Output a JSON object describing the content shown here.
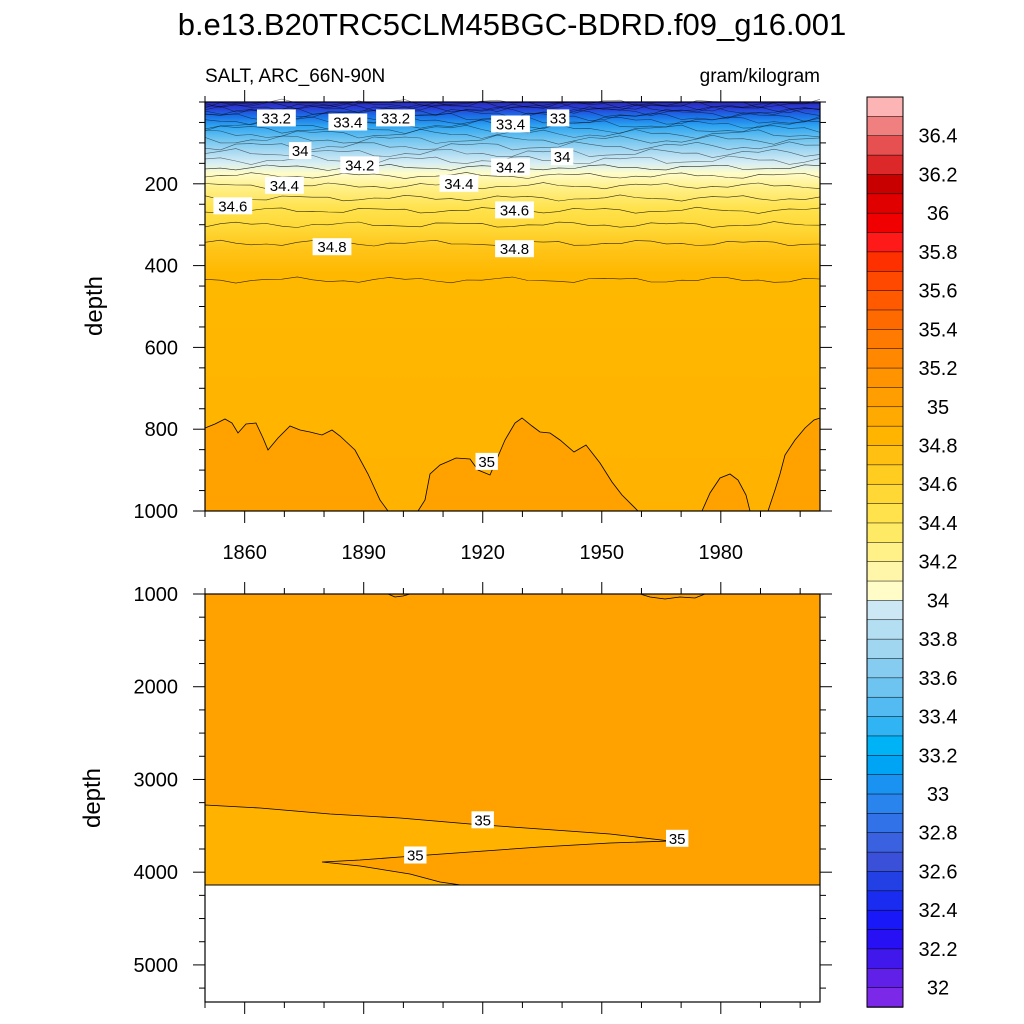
{
  "chart_data": {
    "type": "contour",
    "title": "b.e13.B20TRC5CLM45BGC-BDRD.f09_g16.001",
    "left_string": "SALT, ARC_66N-90N",
    "right_string": "gram/kilogram",
    "xlabel": "",
    "ylabel": "depth",
    "x_range": [
      1850,
      2005
    ],
    "x_tick_labels": [
      "1860",
      "1890",
      "1920",
      "1950",
      "1980"
    ],
    "x_tick_values": [
      1860,
      1890,
      1920,
      1950,
      1980
    ],
    "panels": [
      {
        "name": "upper",
        "y_range": [
          0,
          1000
        ],
        "y_reversed": true,
        "y_tick_labels": [
          "200",
          "400",
          "600",
          "800",
          "1000"
        ],
        "y_tick_values": [
          200,
          400,
          600,
          800,
          1000
        ],
        "contour_labels": [
          {
            "text": "33.2",
            "x": 1868,
            "y": 40
          },
          {
            "text": "33.4",
            "x": 1886,
            "y": 50
          },
          {
            "text": "33.2",
            "x": 1898,
            "y": 40
          },
          {
            "text": "33.4",
            "x": 1927,
            "y": 55
          },
          {
            "text": "33",
            "x": 1939,
            "y": 40
          },
          {
            "text": "34",
            "x": 1874,
            "y": 120
          },
          {
            "text": "34.2",
            "x": 1889,
            "y": 155
          },
          {
            "text": "34",
            "x": 1940,
            "y": 135
          },
          {
            "text": "34.2",
            "x": 1927,
            "y": 160
          },
          {
            "text": "34.4",
            "x": 1870,
            "y": 205
          },
          {
            "text": "34.4",
            "x": 1914,
            "y": 200
          },
          {
            "text": "34.6",
            "x": 1857,
            "y": 255
          },
          {
            "text": "34.6",
            "x": 1928,
            "y": 265
          },
          {
            "text": "34.8",
            "x": 1882,
            "y": 355
          },
          {
            "text": "34.8",
            "x": 1928,
            "y": 360
          },
          {
            "text": "35",
            "x": 1921,
            "y": 880
          }
        ]
      },
      {
        "name": "lower",
        "y_range": [
          1000,
          5400
        ],
        "y_reversed": true,
        "y_tick_labels": [
          "1000",
          "2000",
          "3000",
          "4000",
          "5000"
        ],
        "y_tick_values": [
          1000,
          2000,
          3000,
          4000,
          5000
        ],
        "bottom_depth": 4130,
        "contour_labels": [
          {
            "text": "35",
            "x": 1920,
            "y": 3440
          },
          {
            "text": "35",
            "x": 1969,
            "y": 3640
          },
          {
            "text": "35",
            "x": 1903,
            "y": 3820
          }
        ]
      }
    ],
    "colorbar": {
      "labels": [
        "36.4",
        "36.2",
        "36",
        "35.8",
        "35.6",
        "35.4",
        "35.2",
        "35",
        "34.8",
        "34.6",
        "34.4",
        "34.2",
        "34",
        "33.8",
        "33.6",
        "33.4",
        "33.2",
        "33",
        "32.8",
        "32.6",
        "32.4",
        "32.2",
        "32"
      ],
      "colors_top_to_bottom": [
        "#fcb4b4",
        "#f08080",
        "#e65050",
        "#dc2828",
        "#c80000",
        "#e00000",
        "#f00000",
        "#ff1a1a",
        "#ff3000",
        "#ff4800",
        "#ff5a00",
        "#ff6a00",
        "#ff7a00",
        "#ff8800",
        "#ff9400",
        "#ff9e00",
        "#ffaa00",
        "#ffb400",
        "#ffc012",
        "#ffcc20",
        "#ffd836",
        "#ffe24c",
        "#ffea66",
        "#fff088",
        "#fff6aa",
        "#fffcc8",
        "#cce8f4",
        "#b4def2",
        "#a0d6f0",
        "#86ccf0",
        "#6ec4f0",
        "#54baf2",
        "#30b4f4",
        "#00b2f6",
        "#00a4f4",
        "#1a92f2",
        "#2a84ee",
        "#3272e8",
        "#3a62e0",
        "#3a50d8",
        "#2240e4",
        "#1a2cf0",
        "#1818f8",
        "#2810f4",
        "#4018ec",
        "#6020e8",
        "#7c28e8"
      ]
    },
    "colors": {
      "surface_fresh": "#2a2ab8",
      "mid_blue": "#6ec4f0",
      "yellow": "#ffe85a",
      "orange_main": "#ffb200",
      "orange_deep": "#ffa200"
    }
  }
}
